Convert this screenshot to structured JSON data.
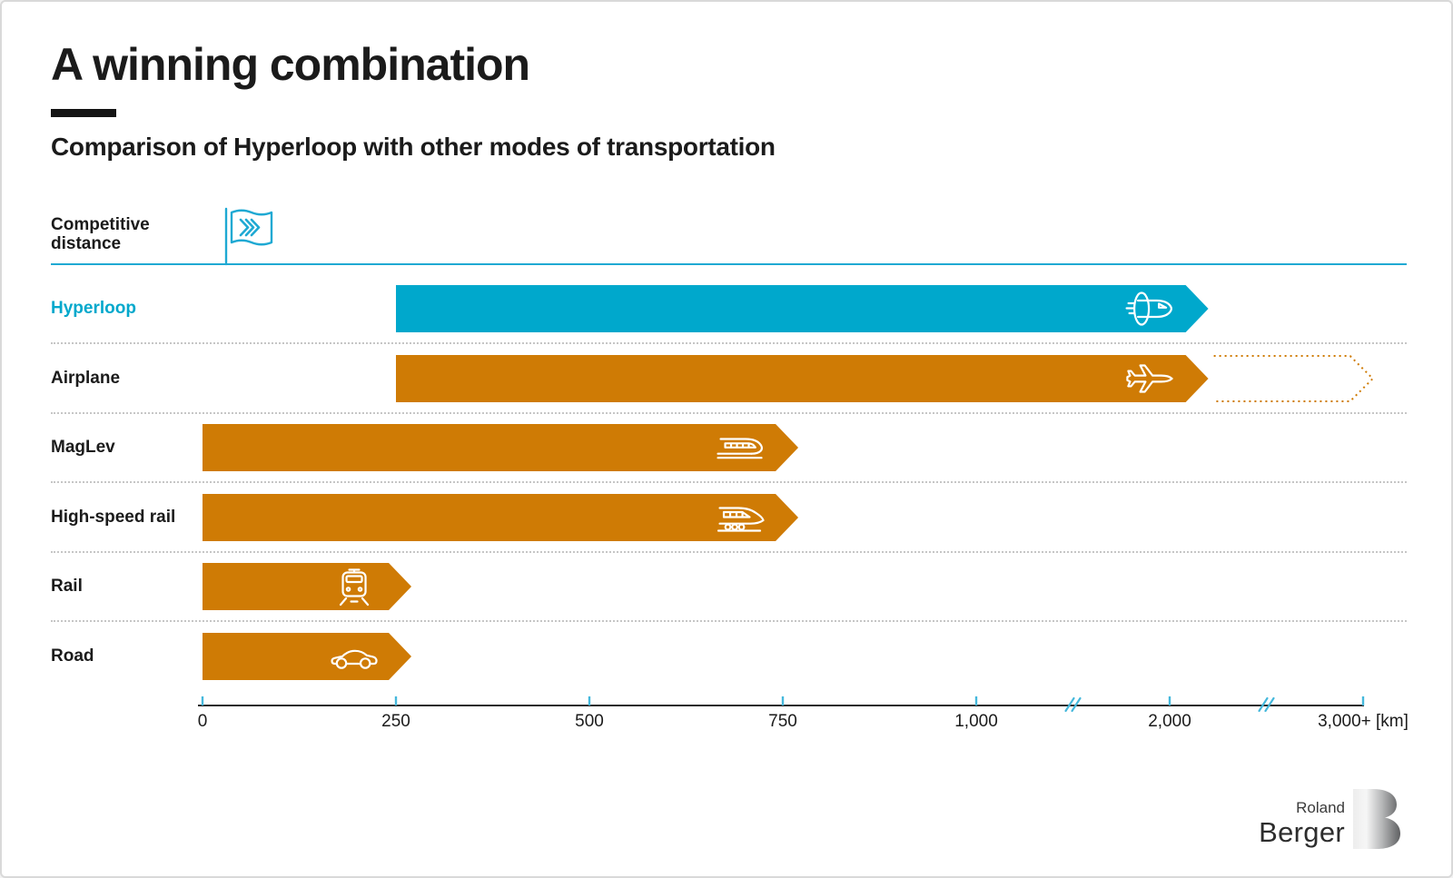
{
  "page": {
    "title": "A winning combination",
    "subtitle": "Comparison of Hyperloop with other modes of transportation"
  },
  "legend": {
    "label": "Competitive distance",
    "icon": "flag-chevrons-icon"
  },
  "chart_data": {
    "type": "bar",
    "orientation": "horizontal",
    "title": "Comparison of Hyperloop with other modes of transportation",
    "unit": "km",
    "xlabel": "Competitive distance [km]",
    "axis": {
      "tick_labels": [
        "0",
        "250",
        "500",
        "750",
        "1,000",
        "2,000",
        "3,000+ [km]"
      ],
      "tick_km": [
        0,
        250,
        500,
        750,
        1000,
        2000,
        3000
      ],
      "break_marks_km": [
        1500,
        2500
      ],
      "scale_note": "axis compressed beyond 1,000 km (break marks)"
    },
    "series": [
      {
        "label": "Hyperloop",
        "start_km": 250,
        "end_km": 2200,
        "color": "bar_cyan",
        "label_color": "bar_cyan",
        "icon": "hyperloop-pod-icon"
      },
      {
        "label": "Airplane",
        "start_km": 250,
        "end_km": 2200,
        "dashed_end_km": 3050,
        "color": "bar_orange",
        "icon": "airplane-icon"
      },
      {
        "label": "MagLev",
        "start_km": 0,
        "end_km": 770,
        "color": "bar_orange",
        "icon": "maglev-train-icon"
      },
      {
        "label": "High-speed rail",
        "start_km": 0,
        "end_km": 770,
        "color": "bar_orange",
        "icon": "high-speed-train-icon"
      },
      {
        "label": "Rail",
        "start_km": 0,
        "end_km": 270,
        "color": "bar_orange",
        "icon": "train-front-icon"
      },
      {
        "label": "Road",
        "start_km": 0,
        "end_km": 270,
        "color": "bar_orange",
        "icon": "car-icon"
      }
    ]
  },
  "colors": {
    "bar_cyan": "#00A8CC",
    "bar_orange": "#CF7B05",
    "accent_cyan": "#1FA9D3",
    "tick_cyan": "#45B8DC",
    "text": "#1B1B1B",
    "separator": "#C6C6C6",
    "axis_line": "#2B2B2B"
  },
  "footer": {
    "brand_top": "Roland",
    "brand_bottom": "Berger",
    "logo_icon": "roland-berger-b-icon"
  }
}
